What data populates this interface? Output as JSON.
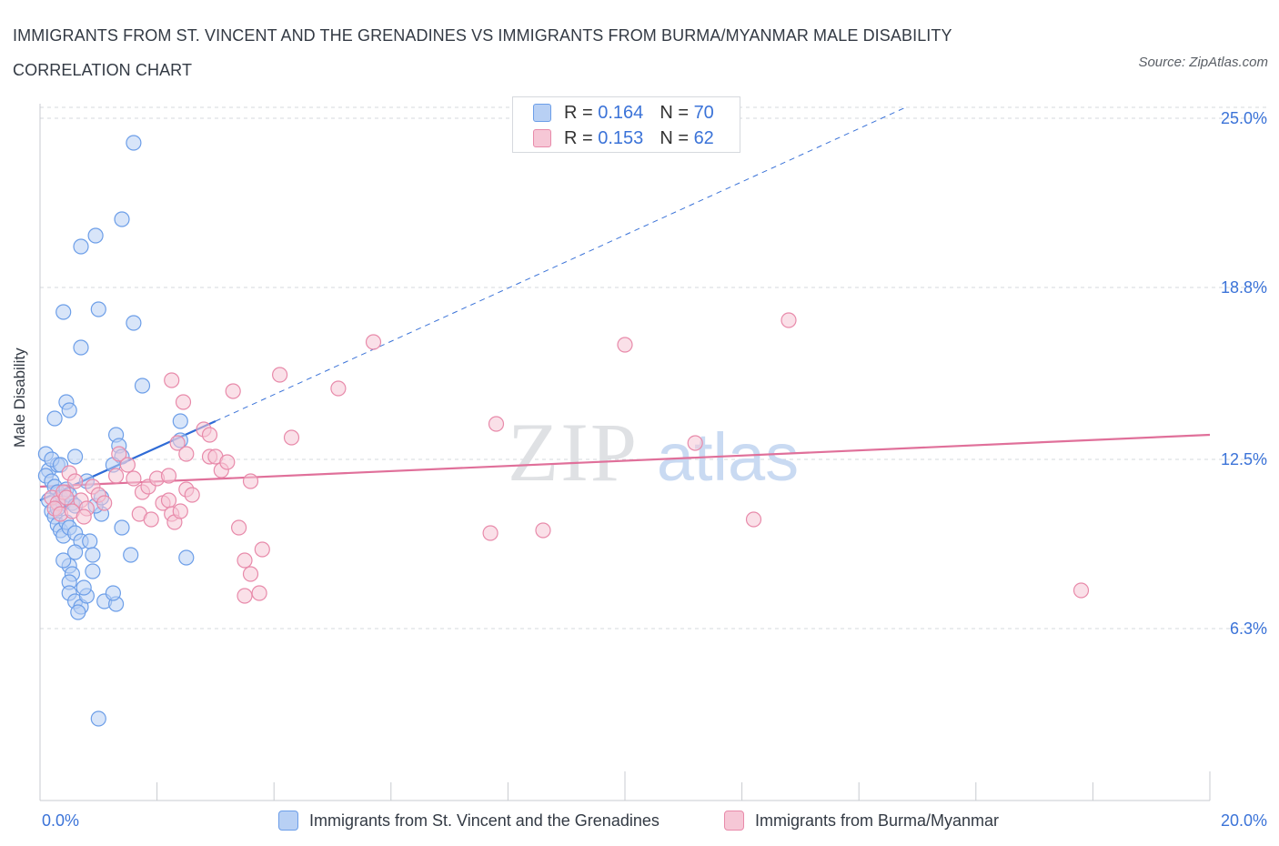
{
  "title": "IMMIGRANTS FROM ST. VINCENT AND THE GRENADINES VS IMMIGRANTS FROM BURMA/MYANMAR MALE DISABILITY CORRELATION CHART",
  "source": "Source: ZipAtlas.com",
  "watermark": {
    "zip": "ZIP",
    "atlas": "atlas"
  },
  "legend": {
    "rows": [
      {
        "r_label": "R =",
        "r_value": "0.164",
        "n_label": "N =",
        "n_value": "70"
      },
      {
        "r_label": "R =",
        "r_value": "0.153",
        "n_label": "N =",
        "n_value": "62"
      }
    ]
  },
  "chart_data": {
    "type": "scatter",
    "title": "IMMIGRANTS FROM ST. VINCENT AND THE GRENADINES VS IMMIGRANTS FROM BURMA/MYANMAR MALE DISABILITY CORRELATION CHART",
    "xlabel": "",
    "ylabel": "Male Disability",
    "xlim": [
      0,
      20
    ],
    "ylim": [
      0,
      25.4
    ],
    "x_tick_labels": [
      "0.0%",
      "20.0%"
    ],
    "y_ticks": [
      6.3,
      12.5,
      18.8,
      25.0
    ],
    "y_tick_labels": [
      "6.3%",
      "12.5%",
      "18.8%",
      "25.0%"
    ],
    "grid": true,
    "legend_position": "top-center",
    "series": [
      {
        "name": "Immigrants from St. Vincent and the Grenadines",
        "color": "#6c9ee8",
        "fill": "#b8d0f4",
        "R": 0.164,
        "N": 70,
        "trend": {
          "x0": 0.0,
          "y0": 11.0,
          "x1": 3.0,
          "y1": 13.9,
          "dashed_to_x": 14.8,
          "dashed_to_y": 25.4
        },
        "points": [
          [
            0.1,
            12.7
          ],
          [
            0.15,
            12.1
          ],
          [
            0.1,
            11.9
          ],
          [
            0.2,
            11.7
          ],
          [
            0.25,
            11.5
          ],
          [
            0.3,
            11.3
          ],
          [
            0.35,
            11.1
          ],
          [
            0.4,
            10.9
          ],
          [
            0.45,
            11.4
          ],
          [
            0.5,
            11.2
          ],
          [
            0.55,
            10.9
          ],
          [
            0.15,
            11.0
          ],
          [
            0.2,
            10.6
          ],
          [
            0.25,
            10.4
          ],
          [
            0.3,
            10.1
          ],
          [
            0.35,
            9.9
          ],
          [
            0.4,
            9.7
          ],
          [
            0.45,
            10.2
          ],
          [
            0.5,
            10.0
          ],
          [
            0.6,
            9.8
          ],
          [
            0.7,
            9.5
          ],
          [
            0.6,
            9.1
          ],
          [
            0.5,
            8.6
          ],
          [
            0.55,
            8.3
          ],
          [
            0.5,
            8.0
          ],
          [
            0.5,
            7.6
          ],
          [
            0.6,
            7.3
          ],
          [
            0.7,
            7.1
          ],
          [
            0.65,
            6.9
          ],
          [
            0.8,
            7.5
          ],
          [
            0.4,
            8.8
          ],
          [
            0.3,
            12.3
          ],
          [
            0.2,
            12.5
          ],
          [
            0.25,
            14.0
          ],
          [
            0.45,
            14.6
          ],
          [
            0.5,
            14.3
          ],
          [
            0.7,
            16.6
          ],
          [
            0.4,
            17.9
          ],
          [
            0.7,
            20.3
          ],
          [
            0.95,
            20.7
          ],
          [
            1.4,
            21.3
          ],
          [
            1.6,
            24.1
          ],
          [
            1.0,
            18.0
          ],
          [
            1.6,
            17.5
          ],
          [
            1.75,
            15.2
          ],
          [
            1.3,
            13.4
          ],
          [
            1.35,
            13.0
          ],
          [
            1.4,
            12.6
          ],
          [
            1.25,
            12.3
          ],
          [
            0.6,
            10.8
          ],
          [
            1.05,
            10.5
          ],
          [
            1.4,
            10.0
          ],
          [
            1.55,
            9.0
          ],
          [
            0.95,
            10.8
          ],
          [
            0.85,
            9.5
          ],
          [
            0.9,
            9.0
          ],
          [
            0.9,
            8.4
          ],
          [
            0.75,
            7.8
          ],
          [
            1.1,
            7.3
          ],
          [
            1.3,
            7.2
          ],
          [
            2.4,
            13.9
          ],
          [
            2.4,
            13.2
          ],
          [
            2.5,
            8.9
          ],
          [
            0.8,
            11.7
          ],
          [
            0.6,
            12.6
          ],
          [
            0.3,
            10.7
          ],
          [
            0.35,
            12.3
          ],
          [
            1.25,
            7.6
          ],
          [
            1.0,
            3.0
          ],
          [
            1.05,
            11.1
          ]
        ]
      },
      {
        "name": "Immigrants from Burma/Myanmar",
        "color": "#e88aaa",
        "fill": "#f6c7d6",
        "R": 0.153,
        "N": 62,
        "trend": {
          "x0": 0.0,
          "y0": 11.5,
          "x1": 20.0,
          "y1": 13.4
        },
        "points": [
          [
            0.2,
            11.1
          ],
          [
            0.3,
            10.9
          ],
          [
            0.4,
            11.3
          ],
          [
            0.5,
            12.0
          ],
          [
            0.6,
            11.7
          ],
          [
            0.7,
            11.0
          ],
          [
            0.8,
            10.7
          ],
          [
            0.9,
            11.5
          ],
          [
            1.0,
            11.2
          ],
          [
            1.1,
            10.9
          ],
          [
            0.25,
            10.7
          ],
          [
            0.35,
            10.5
          ],
          [
            0.45,
            11.1
          ],
          [
            0.55,
            10.6
          ],
          [
            0.75,
            10.4
          ],
          [
            1.3,
            11.9
          ],
          [
            1.35,
            12.7
          ],
          [
            1.5,
            12.3
          ],
          [
            1.6,
            11.8
          ],
          [
            1.75,
            11.3
          ],
          [
            1.7,
            10.5
          ],
          [
            1.85,
            11.5
          ],
          [
            2.0,
            11.8
          ],
          [
            2.1,
            10.9
          ],
          [
            2.2,
            11.0
          ],
          [
            2.25,
            10.5
          ],
          [
            2.3,
            10.2
          ],
          [
            2.4,
            10.6
          ],
          [
            1.9,
            10.3
          ],
          [
            2.2,
            11.9
          ],
          [
            2.35,
            13.1
          ],
          [
            2.5,
            12.7
          ],
          [
            2.5,
            11.4
          ],
          [
            2.6,
            11.2
          ],
          [
            2.9,
            12.6
          ],
          [
            2.8,
            13.6
          ],
          [
            2.9,
            13.4
          ],
          [
            3.0,
            12.6
          ],
          [
            3.1,
            12.1
          ],
          [
            3.2,
            12.4
          ],
          [
            2.45,
            14.6
          ],
          [
            3.3,
            15.0
          ],
          [
            3.4,
            10.0
          ],
          [
            3.5,
            8.8
          ],
          [
            3.6,
            8.3
          ],
          [
            3.8,
            9.2
          ],
          [
            3.6,
            11.7
          ],
          [
            2.25,
            15.4
          ],
          [
            4.1,
            15.6
          ],
          [
            4.3,
            13.3
          ],
          [
            5.1,
            15.1
          ],
          [
            5.7,
            16.8
          ],
          [
            7.8,
            13.8
          ],
          [
            7.7,
            9.8
          ],
          [
            8.6,
            9.9
          ],
          [
            10.0,
            16.7
          ],
          [
            11.2,
            13.1
          ],
          [
            12.2,
            10.3
          ],
          [
            12.8,
            17.6
          ],
          [
            17.8,
            7.7
          ],
          [
            3.5,
            7.5
          ],
          [
            3.75,
            7.6
          ]
        ]
      }
    ]
  },
  "bottom_legend": [
    {
      "label": "Immigrants from St. Vincent and the Grenadines"
    },
    {
      "label": "Immigrants from Burma/Myanmar"
    }
  ]
}
